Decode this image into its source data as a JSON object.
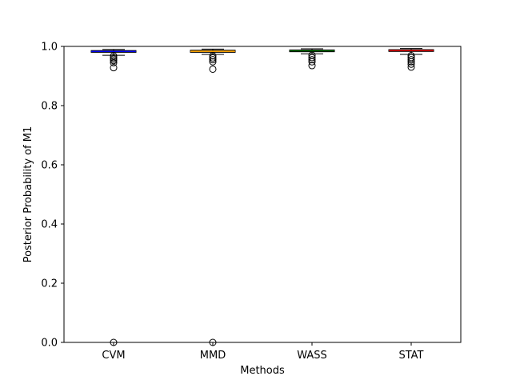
{
  "chart_data": {
    "type": "box",
    "title": "",
    "xlabel": "Methods",
    "ylabel": "Posterior Probability of M1",
    "ylim": [
      0.0,
      1.0
    ],
    "yticks": [
      0.0,
      0.2,
      0.4,
      0.6,
      0.8,
      1.0
    ],
    "ytick_labels": [
      "0.0",
      "0.2",
      "0.4",
      "0.6",
      "0.8",
      "1.0"
    ],
    "grid": false,
    "categories": [
      "CVM",
      "MMD",
      "WASS",
      "STAT"
    ],
    "series": [
      {
        "color": "#0000ff",
        "whisker_low": 0.97,
        "q1": 0.98,
        "median": 0.983,
        "q3": 0.986,
        "whisker_high": 0.99,
        "outliers": [
          0.968,
          0.962,
          0.957,
          0.952,
          0.945,
          0.928,
          0.0
        ]
      },
      {
        "color": "#ffa500",
        "whisker_low": 0.973,
        "q1": 0.98,
        "median": 0.983,
        "q3": 0.987,
        "whisker_high": 0.991,
        "outliers": [
          0.968,
          0.961,
          0.955,
          0.948,
          0.923,
          0.0
        ]
      },
      {
        "color": "#008000",
        "whisker_low": 0.975,
        "q1": 0.982,
        "median": 0.985,
        "q3": 0.988,
        "whisker_high": 0.992,
        "outliers": [
          0.97,
          0.962,
          0.955,
          0.948,
          0.935
        ]
      },
      {
        "color": "#ff0000",
        "whisker_low": 0.973,
        "q1": 0.983,
        "median": 0.986,
        "q3": 0.989,
        "whisker_high": 0.993,
        "outliers": [
          0.969,
          0.962,
          0.955,
          0.948,
          0.94,
          0.93
        ]
      }
    ]
  }
}
